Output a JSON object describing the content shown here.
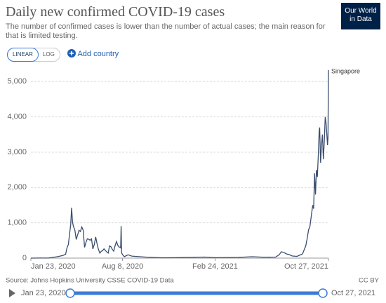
{
  "header": {
    "title": "Daily new confirmed COVID-19 cases",
    "subtitle": "The number of confirmed cases is lower than the number of actual cases; the main reason for that is limited testing.",
    "logo": [
      "Our World",
      "in Data"
    ]
  },
  "controls": {
    "linear": "LINEAR",
    "log": "LOG",
    "add": "Add country"
  },
  "chart_data": {
    "type": "line",
    "x": [
      "2020-01-23",
      "2020-02-10",
      "2020-03-01",
      "2020-03-20",
      "2020-04-01",
      "2020-04-07",
      "2020-04-10",
      "2020-04-13",
      "2020-04-16",
      "2020-04-18",
      "2020-04-20",
      "2020-04-22",
      "2020-04-24",
      "2020-04-27",
      "2020-04-30",
      "2020-05-03",
      "2020-05-06",
      "2020-05-09",
      "2020-05-12",
      "2020-05-15",
      "2020-05-18",
      "2020-05-21",
      "2020-05-24",
      "2020-05-27",
      "2020-05-30",
      "2020-06-02",
      "2020-06-05",
      "2020-06-08",
      "2020-06-11",
      "2020-06-14",
      "2020-06-17",
      "2020-06-20",
      "2020-06-23",
      "2020-06-26",
      "2020-06-29",
      "2020-07-02",
      "2020-07-05",
      "2020-07-08",
      "2020-07-11",
      "2020-07-14",
      "2020-07-17",
      "2020-07-20",
      "2020-07-23",
      "2020-07-26",
      "2020-07-29",
      "2020-08-01",
      "2020-08-03",
      "2020-08-04",
      "2020-08-05",
      "2020-08-06",
      "2020-08-08",
      "2020-08-12",
      "2020-08-20",
      "2020-08-28",
      "2020-09-10",
      "2020-10-01",
      "2020-11-01",
      "2020-12-01",
      "2021-01-01",
      "2021-02-01",
      "2021-02-24",
      "2021-03-20",
      "2021-04-15",
      "2021-05-15",
      "2021-06-10",
      "2021-07-05",
      "2021-07-13",
      "2021-07-17",
      "2021-07-20",
      "2021-07-24",
      "2021-07-28",
      "2021-08-03",
      "2021-08-10",
      "2021-08-20",
      "2021-08-27",
      "2021-09-01",
      "2021-09-05",
      "2021-09-08",
      "2021-09-11",
      "2021-09-14",
      "2021-09-17",
      "2021-09-20",
      "2021-09-23",
      "2021-09-25",
      "2021-09-27",
      "2021-09-29",
      "2021-10-01",
      "2021-10-03",
      "2021-10-05",
      "2021-10-07",
      "2021-10-08",
      "2021-10-10",
      "2021-10-12",
      "2021-10-14",
      "2021-10-16",
      "2021-10-18",
      "2021-10-20",
      "2021-10-22",
      "2021-10-24",
      "2021-10-25",
      "2021-10-26",
      "2021-10-27"
    ],
    "series": [
      {
        "name": "Singapore",
        "color": "#3b4d6e",
        "values": [
          0,
          2,
          3,
          40,
          74,
          106,
          287,
          386,
          728,
          942,
          1426,
          1016,
          897,
          799,
          528,
          657,
          788,
          753,
          884,
          793,
          305,
          448,
          548,
          533,
          506,
          544,
          261,
          386,
          601,
          407,
          247,
          142,
          191,
          213,
          262,
          215,
          175,
          142,
          347,
          322,
          248,
          198,
          354,
          469,
          359,
          307,
          313,
          295,
          908,
          148,
          100,
          42,
          93,
          57,
          45,
          25,
          10,
          12,
          20,
          30,
          12,
          15,
          20,
          40,
          25,
          30,
          100,
          180,
          170,
          150,
          120,
          100,
          60,
          50,
          90,
          120,
          250,
          350,
          550,
          800,
          900,
          1200,
          1500,
          1400,
          2400,
          1800,
          2500,
          2300,
          2900,
          3600,
          3700,
          2700,
          3200,
          3500,
          2800,
          3300,
          4000,
          3800,
          3400,
          3200,
          3400,
          5324
        ]
      }
    ],
    "xlim": [
      "2020-01-23",
      "2021-10-27"
    ],
    "xticks": [
      {
        "value": "2020-01-23",
        "label": "Jan 23, 2020"
      },
      {
        "value": "2020-08-08",
        "label": "Aug 8, 2020"
      },
      {
        "value": "2021-02-24",
        "label": "Feb 24, 2021"
      },
      {
        "value": "2021-10-27",
        "label": "Oct 27, 2021"
      }
    ],
    "ylim": [
      0,
      5324
    ],
    "yticks": [
      0,
      {
        "value": 1000,
        "label": "1,000"
      },
      {
        "value": 2000,
        "label": "2,000"
      },
      {
        "value": 3000,
        "label": "3,000"
      },
      {
        "value": 4000,
        "label": "4,000"
      },
      {
        "value": 5000,
        "label": "5,000"
      }
    ],
    "grid": true
  },
  "footer": {
    "source": "Source: Johns Hopkins University CSSE COVID-19 Data",
    "license": "CC BY",
    "start": "Jan 23, 2020",
    "end": "Oct 27, 2021"
  }
}
